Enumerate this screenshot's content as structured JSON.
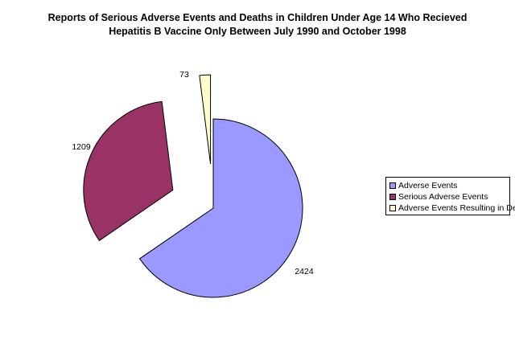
{
  "chart_data": {
    "type": "pie",
    "title": "Reports of Serious Adverse Events and Deaths in Children Under Age 14 Who Recieved",
    "subtitle": "Hepatitis B Vaccine Only Between July 1990 and October 1998",
    "categories": [
      "Adverse Events",
      "Serious Adverse Events",
      "Adverse Events Resulting in Death"
    ],
    "values": [
      2424,
      1209,
      73
    ],
    "data_labels": [
      "2424",
      "1209",
      "73"
    ],
    "colors": [
      "#9999ff",
      "#993366",
      "#ffffcc"
    ],
    "exploded": [
      false,
      true,
      true
    ],
    "legend_placement": "right"
  }
}
